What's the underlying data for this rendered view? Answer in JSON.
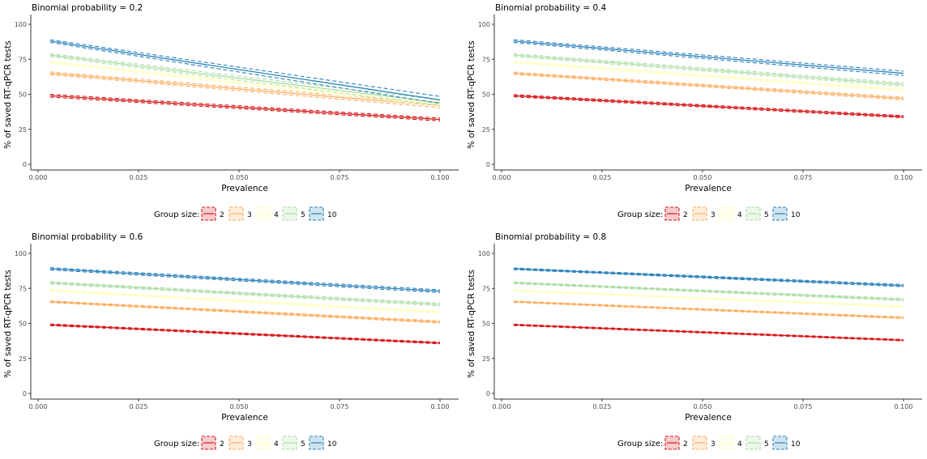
{
  "palette": {
    "2": "#d7191c",
    "3": "#fdae61",
    "4": "#ffffbf",
    "5": "#abdda4",
    "10": "#2b83ba",
    "axis": "#333333",
    "text": "#000000",
    "tick_text": "#4d4d4d"
  },
  "legend": {
    "title": "Group size:",
    "entries": [
      "2",
      "3",
      "4",
      "5",
      "10"
    ]
  },
  "chart_data": [
    {
      "type": "line",
      "title": "Binomial probability = 0.2",
      "xlabel": "Prevalence",
      "ylabel": "% of saved RT-qPCR tests",
      "xlim": [
        0,
        0.1
      ],
      "ylim": [
        0,
        100
      ],
      "xticks": [
        "0.000",
        "0.025",
        "0.050",
        "0.075",
        "0.100"
      ],
      "yticks": [
        "0",
        "25",
        "50",
        "75",
        "100"
      ],
      "x": [
        0.003,
        0.1
      ],
      "grid": false,
      "legend_position": "bottom",
      "series": [
        {
          "name": "2",
          "values": [
            49,
            32
          ],
          "band": [
            1.0,
            1.0
          ]
        },
        {
          "name": "3",
          "values": [
            65,
            42
          ],
          "band": [
            1.0,
            1.5
          ]
        },
        {
          "name": "4",
          "values": [
            73,
            43
          ],
          "band": [
            0.8,
            1.5
          ]
        },
        {
          "name": "5",
          "values": [
            78,
            44
          ],
          "band": [
            1.0,
            2.0
          ]
        },
        {
          "name": "10",
          "values": [
            88,
            46
          ],
          "band": [
            1.0,
            2.5
          ]
        }
      ]
    },
    {
      "type": "line",
      "title": "Binomial probability = 0.4",
      "xlabel": "Prevalence",
      "ylabel": "% of saved RT-qPCR tests",
      "xlim": [
        0,
        0.1
      ],
      "ylim": [
        0,
        100
      ],
      "xticks": [
        "0.000",
        "0.025",
        "0.050",
        "0.075",
        "0.100"
      ],
      "yticks": [
        "0",
        "25",
        "50",
        "75",
        "100"
      ],
      "x": [
        0.003,
        0.1
      ],
      "grid": false,
      "legend_position": "bottom",
      "series": [
        {
          "name": "2",
          "values": [
            49,
            34
          ],
          "band": [
            0.8,
            0.8
          ]
        },
        {
          "name": "3",
          "values": [
            65,
            47
          ],
          "band": [
            0.8,
            1.0
          ]
        },
        {
          "name": "4",
          "values": [
            73,
            53
          ],
          "band": [
            0.8,
            1.0
          ]
        },
        {
          "name": "5",
          "values": [
            78,
            57
          ],
          "band": [
            1.0,
            1.2
          ]
        },
        {
          "name": "10",
          "values": [
            88,
            65
          ],
          "band": [
            1.0,
            1.5
          ]
        }
      ]
    },
    {
      "type": "line",
      "title": "Binomial probability = 0.6",
      "xlabel": "Prevalence",
      "ylabel": "% of saved RT-qPCR tests",
      "xlim": [
        0,
        0.1
      ],
      "ylim": [
        0,
        100
      ],
      "xticks": [
        "0.000",
        "0.025",
        "0.050",
        "0.075",
        "0.100"
      ],
      "yticks": [
        "0",
        "25",
        "50",
        "75",
        "100"
      ],
      "x": [
        0.003,
        0.1
      ],
      "grid": false,
      "legend_position": "bottom",
      "series": [
        {
          "name": "2",
          "values": [
            49,
            36
          ],
          "band": [
            0.6,
            0.6
          ]
        },
        {
          "name": "3",
          "values": [
            65.5,
            51
          ],
          "band": [
            0.6,
            0.8
          ]
        },
        {
          "name": "4",
          "values": [
            73.5,
            58
          ],
          "band": [
            0.6,
            0.8
          ]
        },
        {
          "name": "5",
          "values": [
            79,
            63.5
          ],
          "band": [
            0.8,
            1.0
          ]
        },
        {
          "name": "10",
          "values": [
            89,
            73
          ],
          "band": [
            0.8,
            1.0
          ]
        }
      ]
    },
    {
      "type": "line",
      "title": "Binomial probability = 0.8",
      "xlabel": "Prevalence",
      "ylabel": "% of saved RT-qPCR tests",
      "xlim": [
        0,
        0.1
      ],
      "ylim": [
        0,
        100
      ],
      "xticks": [
        "0.000",
        "0.025",
        "0.050",
        "0.075",
        "0.100"
      ],
      "yticks": [
        "0",
        "25",
        "50",
        "75",
        "100"
      ],
      "x": [
        0.003,
        0.1
      ],
      "grid": false,
      "legend_position": "bottom",
      "series": [
        {
          "name": "2",
          "values": [
            49,
            38
          ],
          "band": [
            0.5,
            0.5
          ]
        },
        {
          "name": "3",
          "values": [
            65.5,
            54
          ],
          "band": [
            0.5,
            0.6
          ]
        },
        {
          "name": "4",
          "values": [
            73.5,
            62
          ],
          "band": [
            0.5,
            0.6
          ]
        },
        {
          "name": "5",
          "values": [
            79,
            67
          ],
          "band": [
            0.6,
            0.8
          ]
        },
        {
          "name": "10",
          "values": [
            89,
            77
          ],
          "band": [
            0.6,
            0.8
          ]
        }
      ]
    }
  ]
}
